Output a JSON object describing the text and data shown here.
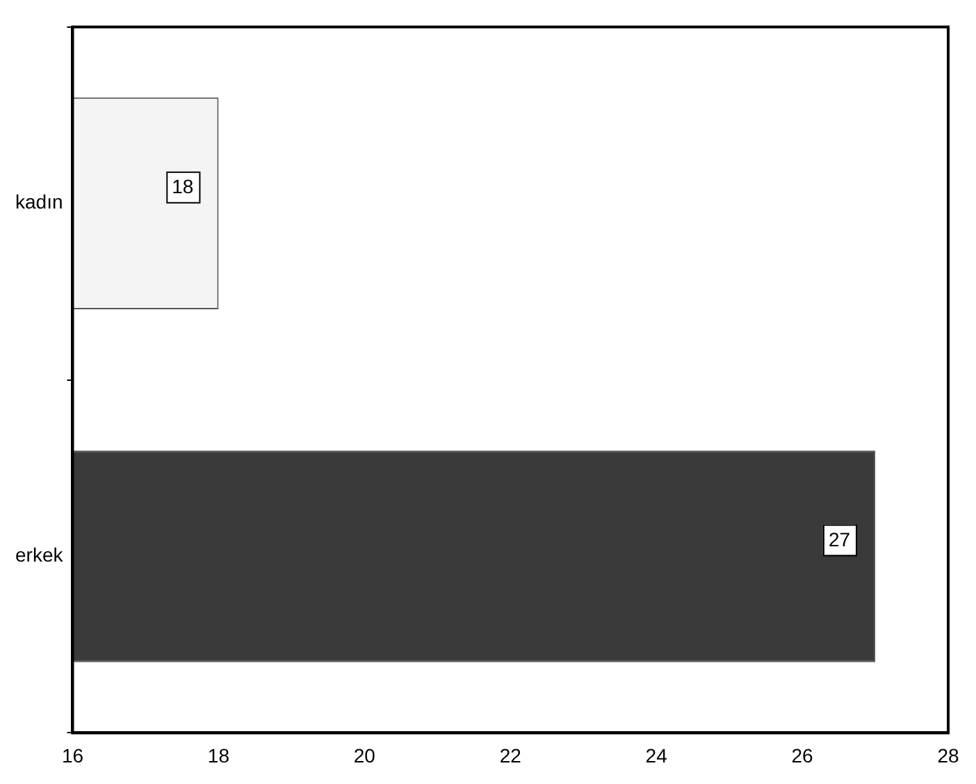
{
  "chart_data": {
    "type": "bar",
    "orientation": "horizontal",
    "categories": [
      "kadın",
      "erkek"
    ],
    "values": [
      18,
      27
    ],
    "colors": [
      "#f4f4f4",
      "#3a3a3a"
    ],
    "xlim": [
      16,
      28
    ],
    "xticks": [
      16,
      18,
      20,
      22,
      24,
      26,
      28
    ],
    "grid": false,
    "legend": false,
    "data_labels": true
  }
}
